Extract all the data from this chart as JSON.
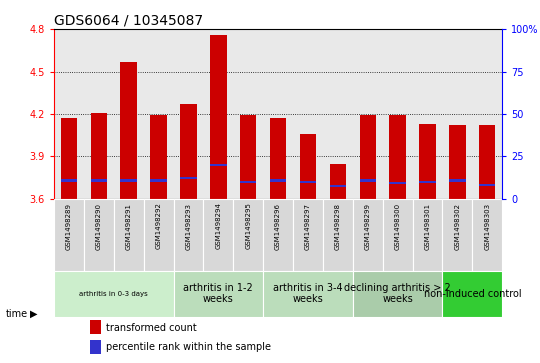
{
  "title": "GDS6064 / 10345087",
  "samples": [
    "GSM1498289",
    "GSM1498290",
    "GSM1498291",
    "GSM1498292",
    "GSM1498293",
    "GSM1498294",
    "GSM1498295",
    "GSM1498296",
    "GSM1498297",
    "GSM1498298",
    "GSM1498299",
    "GSM1498300",
    "GSM1498301",
    "GSM1498302",
    "GSM1498303"
  ],
  "transformed_count": [
    4.17,
    4.21,
    4.57,
    4.19,
    4.27,
    4.76,
    4.19,
    4.17,
    4.06,
    3.85,
    4.19,
    4.19,
    4.13,
    4.12,
    4.12
  ],
  "percentile_rank": [
    3.73,
    3.73,
    3.73,
    3.73,
    3.75,
    3.84,
    3.72,
    3.73,
    3.72,
    3.69,
    3.73,
    3.71,
    3.72,
    3.73,
    3.7
  ],
  "percentile_thickness": 0.015,
  "ymin": 3.6,
  "ymax": 4.8,
  "yticks": [
    3.6,
    3.9,
    4.2,
    4.5,
    4.8
  ],
  "right_yticks_vals": [
    0,
    25,
    50,
    75,
    100
  ],
  "right_yticks_labels": [
    "0",
    "25",
    "50",
    "75",
    "100%"
  ],
  "bar_color": "#cc0000",
  "percentile_color": "#3333cc",
  "bar_width": 0.55,
  "groups": [
    {
      "label": "arthritis in 0-3 days",
      "indices": [
        0,
        1,
        2,
        3
      ],
      "color": "#cceecc",
      "small_font": true
    },
    {
      "label": "arthritis in 1-2\nweeks",
      "indices": [
        4,
        5,
        6
      ],
      "color": "#bbddbb",
      "small_font": false
    },
    {
      "label": "arthritis in 3-4\nweeks",
      "indices": [
        7,
        8,
        9
      ],
      "color": "#bbddbb",
      "small_font": false
    },
    {
      "label": "declining arthritis > 2\nweeks",
      "indices": [
        10,
        11,
        12
      ],
      "color": "#aaccaa",
      "small_font": false
    },
    {
      "label": "non-induced control",
      "indices": [
        13,
        14
      ],
      "color": "#33cc33",
      "small_font": false
    }
  ],
  "xlabel_time": "time",
  "legend_items": [
    {
      "label": "transformed count",
      "color": "#cc0000"
    },
    {
      "label": "percentile rank within the sample",
      "color": "#3333cc"
    }
  ],
  "title_fontsize": 10,
  "tick_fontsize": 7,
  "sample_fontsize": 5,
  "group_fontsize": 7,
  "group_fontsize_small": 5
}
